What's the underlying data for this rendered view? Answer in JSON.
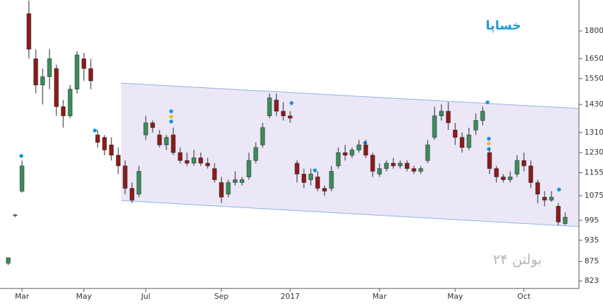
{
  "chart_data": {
    "type": "candlestick",
    "title": "خساپا",
    "watermark": "بولتن ۲۴",
    "log_scale": true,
    "up_color": "#3d8c5c",
    "down_color": "#8c1c1c",
    "categories": [
      null,
      null,
      "Mar",
      null,
      null,
      null,
      null,
      null,
      null,
      null,
      null,
      "May",
      null,
      null,
      null,
      null,
      null,
      null,
      null,
      null,
      "Jul",
      null,
      null,
      null,
      null,
      null,
      null,
      null,
      null,
      null,
      null,
      "Sep",
      null,
      null,
      null,
      null,
      null,
      null,
      null,
      null,
      null,
      "2017",
      null,
      null,
      null,
      null,
      null,
      null,
      null,
      null,
      null,
      null,
      null,
      null,
      "Mar",
      null,
      null,
      null,
      null,
      null,
      null,
      null,
      null,
      null,
      null,
      "May",
      null,
      null,
      null,
      null,
      null,
      null,
      null,
      null,
      null,
      "Oct",
      null,
      null,
      null,
      null,
      null,
      null
    ],
    "open": [
      870,
      1010,
      1090,
      1900,
      1650,
      1520,
      1560,
      1600,
      1420,
      1380,
      1500,
      1650,
      1600,
      1300,
      1290,
      1260,
      1220,
      1180,
      1100,
      1080,
      1300,
      1350,
      1300,
      1260,
      1300,
      1230,
      1200,
      1190,
      1210,
      1190,
      1170,
      1120,
      1080,
      1120,
      1120,
      1140,
      1200,
      1260,
      1380,
      1450,
      1400,
      1380,
      1190,
      1150,
      1130,
      1140,
      1100,
      1100,
      1180,
      1230,
      1220,
      1240,
      1260,
      1220,
      1150,
      1170,
      1190,
      1180,
      1190,
      1170,
      1160,
      1200,
      1290,
      1380,
      1400,
      1320,
      1290,
      1250,
      1320,
      1360,
      1230,
      1170,
      1140,
      1130,
      1150,
      1200,
      1180,
      1120,
      1070,
      1060,
      1040,
      985
    ],
    "high": [
      885,
      1015,
      1200,
      1980,
      1700,
      1600,
      1700,
      1620,
      1450,
      1520,
      1690,
      1680,
      1650,
      1320,
      1300,
      1290,
      1250,
      1200,
      1120,
      1180,
      1380,
      1360,
      1320,
      1300,
      1330,
      1250,
      1230,
      1240,
      1230,
      1210,
      1190,
      1140,
      1130,
      1160,
      1140,
      1230,
      1270,
      1350,
      1480,
      1480,
      1440,
      1400,
      1200,
      1170,
      1170,
      1160,
      1110,
      1180,
      1250,
      1260,
      1250,
      1280,
      1280,
      1230,
      1190,
      1200,
      1210,
      1200,
      1200,
      1180,
      1180,
      1280,
      1420,
      1430,
      1440,
      1350,
      1310,
      1330,
      1390,
      1420,
      1240,
      1180,
      1150,
      1160,
      1220,
      1230,
      1200,
      1130,
      1090,
      1090,
      1050,
      1020
    ],
    "low": [
      865,
      1005,
      1085,
      1650,
      1480,
      1430,
      1500,
      1380,
      1330,
      1370,
      1480,
      1540,
      1500,
      1250,
      1220,
      1200,
      1150,
      1080,
      1050,
      1070,
      1280,
      1310,
      1250,
      1240,
      1220,
      1190,
      1180,
      1180,
      1180,
      1170,
      1120,
      1050,
      1070,
      1110,
      1110,
      1130,
      1190,
      1250,
      1370,
      1380,
      1360,
      1350,
      1120,
      1100,
      1110,
      1090,
      1075,
      1090,
      1170,
      1200,
      1210,
      1230,
      1210,
      1140,
      1140,
      1160,
      1170,
      1170,
      1160,
      1150,
      1150,
      1190,
      1280,
      1360,
      1320,
      1260,
      1230,
      1240,
      1300,
      1340,
      1150,
      1120,
      1120,
      1120,
      1140,
      1160,
      1100,
      1050,
      1040,
      1055,
      980,
      980
    ],
    "close": [
      885,
      1012,
      1180,
      1700,
      1520,
      1560,
      1650,
      1420,
      1380,
      1500,
      1670,
      1600,
      1540,
      1270,
      1240,
      1220,
      1180,
      1100,
      1060,
      1160,
      1350,
      1330,
      1260,
      1290,
      1230,
      1200,
      1190,
      1210,
      1190,
      1180,
      1130,
      1070,
      1120,
      1130,
      1130,
      1200,
      1250,
      1330,
      1460,
      1400,
      1380,
      1370,
      1150,
      1120,
      1150,
      1100,
      1090,
      1160,
      1230,
      1220,
      1240,
      1260,
      1220,
      1160,
      1170,
      1190,
      1180,
      1190,
      1170,
      1160,
      1170,
      1260,
      1380,
      1400,
      1350,
      1290,
      1250,
      1300,
      1360,
      1400,
      1170,
      1140,
      1130,
      1140,
      1200,
      1180,
      1120,
      1080,
      1060,
      1070,
      990,
      1005
    ],
    "ylim": [
      804,
      1983
    ],
    "yticks": [
      823,
      875,
      935,
      995,
      1075,
      1155,
      1230,
      1310,
      1430,
      1550,
      1650,
      1800
    ]
  }
}
